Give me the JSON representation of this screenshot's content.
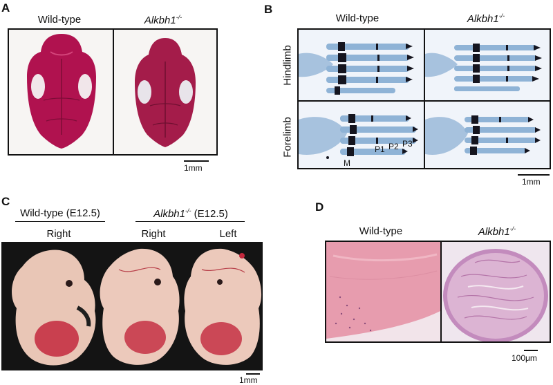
{
  "panels": {
    "a": {
      "label": "A",
      "col_left": "Wild-type",
      "col_right_gene": "Alkbh1",
      "col_right_sup": "-/-",
      "scale": "1mm"
    },
    "b": {
      "label": "B",
      "col_left": "Wild-type",
      "col_right_gene": "Alkbh1",
      "col_right_sup": "-/-",
      "row_top": "Hindlimb",
      "row_bottom": "Forelimb",
      "bone_labels": {
        "m": "M",
        "p1": "P1",
        "p2": "P2",
        "p3": "P3"
      },
      "scale": "1mm"
    },
    "c": {
      "label": "C",
      "left_group": "Wild-type (E12.5)",
      "right_group_gene": "Alkbh1",
      "right_group_sup": "-/-",
      "right_group_suffix": " (E12.5)",
      "side_1": "Right",
      "side_2": "Right",
      "side_3": "Left",
      "scale": "1mm"
    },
    "d": {
      "label": "D",
      "col_left": "Wild-type",
      "col_right_gene": "Alkbh1",
      "col_right_sup": "-/-",
      "scale": "100μm"
    }
  },
  "colors": {
    "skull_stain": "#b0124f",
    "cartilage": "#8fb3d6",
    "bone_dark": "#15151f",
    "embryo_bg": "#141414",
    "embryo_skin": "#e9c6b6",
    "liver": "#c3283d",
    "he_pink": "#e79cae",
    "he_purple": "#c38bbd"
  }
}
